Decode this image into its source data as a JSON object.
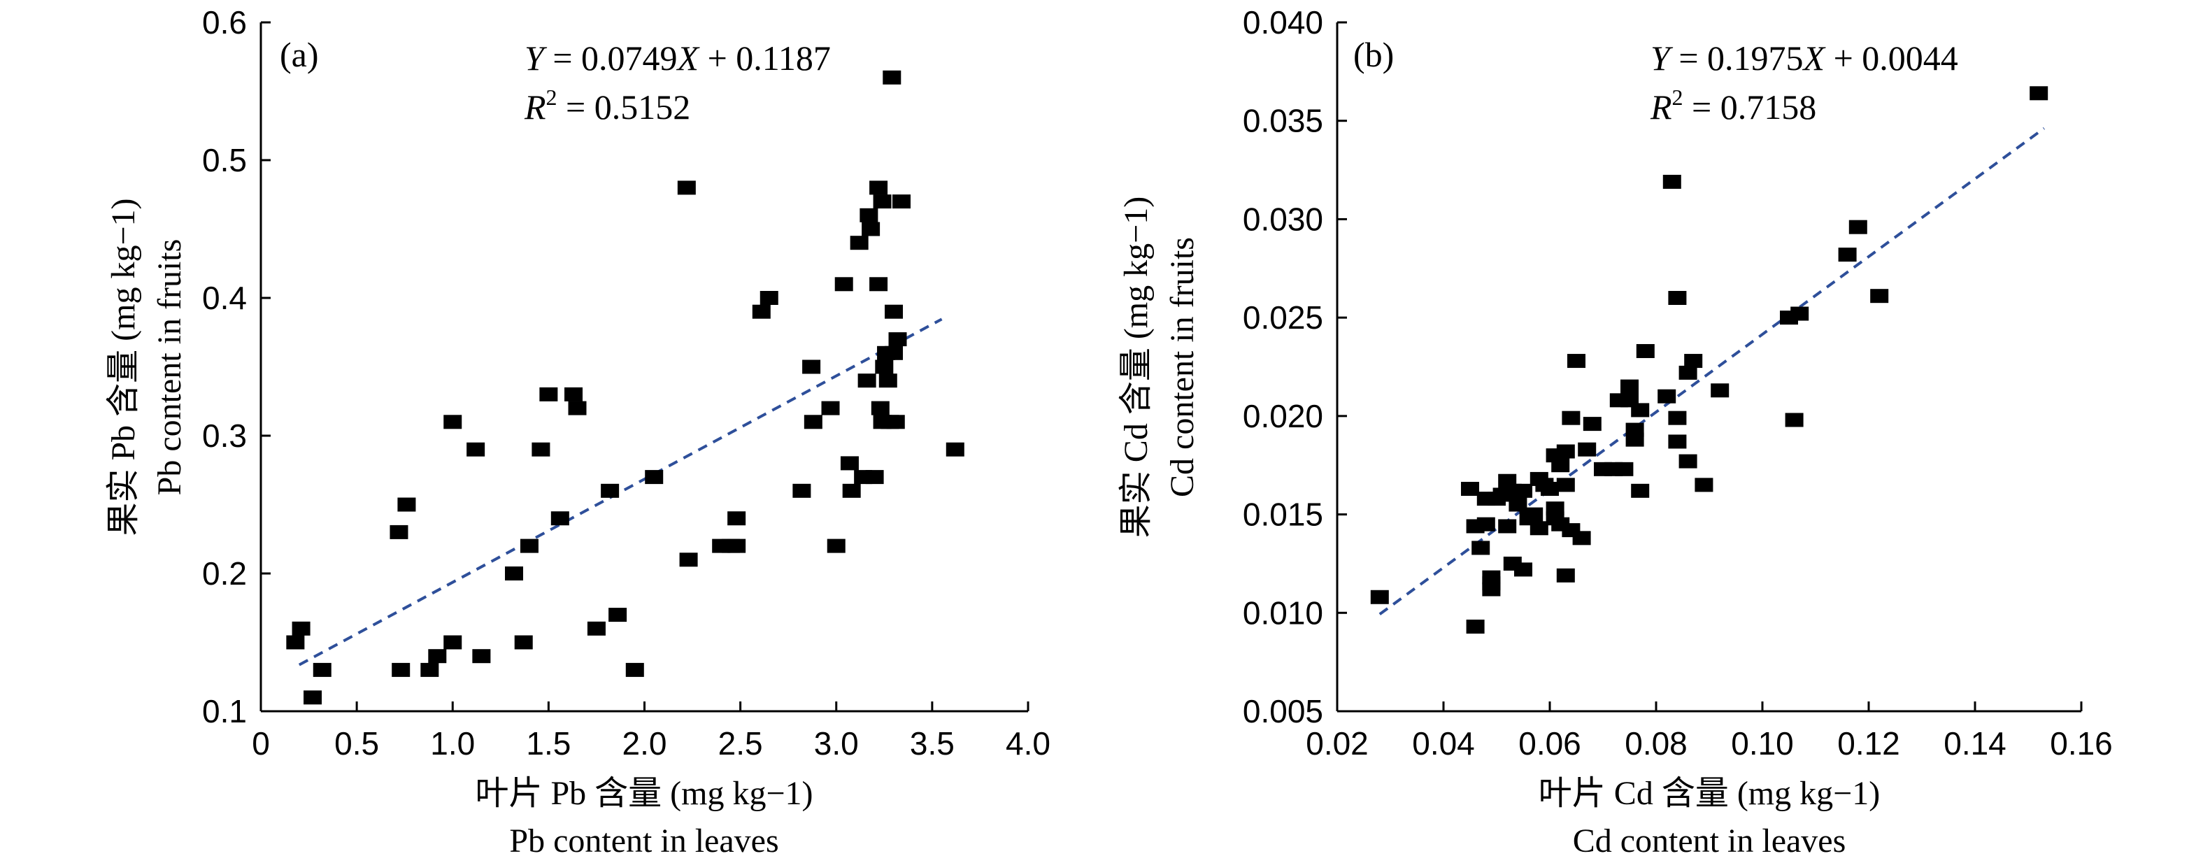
{
  "chart_data": [
    {
      "type": "scatter",
      "panel": "(a)",
      "equation": "Y = 0.0749X + 0.1187",
      "r2": "R2 = 0.5152",
      "xlabel_cn": "叶片 Pb 含量 (mg kg−1)",
      "xlabel_en": "Pb content in leaves",
      "ylabel_cn": "果实 Pb 含量 (mg kg−1)",
      "ylabel_en": "Pb content in fruits",
      "xlim": [
        0,
        4.0
      ],
      "ylim": [
        0.1,
        0.6
      ],
      "xticks": [
        "0",
        "0.5",
        "1.0",
        "1.5",
        "2.0",
        "2.5",
        "3.0",
        "3.5",
        "4.0"
      ],
      "yticks": [
        "0.1",
        "0.2",
        "0.3",
        "0.4",
        "0.5",
        "0.6"
      ],
      "fit": {
        "slope": 0.0749,
        "intercept": 0.1187,
        "x_range": [
          0.2,
          3.55
        ]
      },
      "points": [
        [
          0.18,
          0.15
        ],
        [
          0.21,
          0.16
        ],
        [
          0.27,
          0.11
        ],
        [
          0.32,
          0.13
        ],
        [
          0.72,
          0.23
        ],
        [
          0.73,
          0.13
        ],
        [
          0.76,
          0.25
        ],
        [
          0.88,
          0.13
        ],
        [
          0.92,
          0.14
        ],
        [
          1.0,
          0.31
        ],
        [
          1.0,
          0.15
        ],
        [
          1.12,
          0.29
        ],
        [
          1.15,
          0.14
        ],
        [
          1.32,
          0.2
        ],
        [
          1.37,
          0.15
        ],
        [
          1.4,
          0.22
        ],
        [
          1.46,
          0.29
        ],
        [
          1.5,
          0.33
        ],
        [
          1.56,
          0.24
        ],
        [
          1.63,
          0.33
        ],
        [
          1.65,
          0.32
        ],
        [
          1.75,
          0.16
        ],
        [
          1.82,
          0.26
        ],
        [
          1.86,
          0.17
        ],
        [
          1.95,
          0.13
        ],
        [
          2.05,
          0.27
        ],
        [
          2.22,
          0.48
        ],
        [
          2.23,
          0.21
        ],
        [
          2.4,
          0.22
        ],
        [
          2.45,
          0.22
        ],
        [
          2.48,
          0.24
        ],
        [
          2.48,
          0.22
        ],
        [
          2.61,
          0.39
        ],
        [
          2.65,
          0.4
        ],
        [
          2.82,
          0.26
        ],
        [
          2.87,
          0.35
        ],
        [
          2.88,
          0.31
        ],
        [
          2.97,
          0.32
        ],
        [
          3.0,
          0.22
        ],
        [
          3.04,
          0.41
        ],
        [
          3.07,
          0.28
        ],
        [
          3.08,
          0.26
        ],
        [
          3.12,
          0.44
        ],
        [
          3.14,
          0.27
        ],
        [
          3.16,
          0.34
        ],
        [
          3.17,
          0.46
        ],
        [
          3.18,
          0.45
        ],
        [
          3.2,
          0.27
        ],
        [
          3.22,
          0.48
        ],
        [
          3.22,
          0.41
        ],
        [
          3.23,
          0.32
        ],
        [
          3.24,
          0.47
        ],
        [
          3.24,
          0.31
        ],
        [
          3.25,
          0.35
        ],
        [
          3.26,
          0.36
        ],
        [
          3.27,
          0.34
        ],
        [
          3.28,
          0.31
        ],
        [
          3.29,
          0.56
        ],
        [
          3.3,
          0.39
        ],
        [
          3.3,
          0.36
        ],
        [
          3.31,
          0.31
        ],
        [
          3.32,
          0.37
        ],
        [
          3.34,
          0.47
        ],
        [
          3.62,
          0.29
        ]
      ]
    },
    {
      "type": "scatter",
      "panel": "(b)",
      "equation": "Y = 0.1975X + 0.0044",
      "r2": "R2 = 0.7158",
      "xlabel_cn": "叶片 Cd 含量 (mg kg−1)",
      "xlabel_en": "Cd content in leaves",
      "ylabel_cn": "果实 Cd 含量 (mg kg−1)",
      "ylabel_en": "Cd content in fruits",
      "xlim": [
        0.02,
        0.16
      ],
      "ylim": [
        0.005,
        0.04
      ],
      "xticks": [
        "0.02",
        "0.04",
        "0.06",
        "0.08",
        "0.10",
        "0.12",
        "0.14",
        "0.16"
      ],
      "yticks": [
        "0.005",
        "0.010",
        "0.015",
        "0.020",
        "0.025",
        "0.030",
        "0.035",
        "0.040"
      ],
      "fit": {
        "slope": 0.1975,
        "intercept": 0.0044,
        "x_range": [
          0.028,
          0.153
        ]
      },
      "points": [
        [
          0.028,
          0.0108
        ],
        [
          0.045,
          0.0163
        ],
        [
          0.046,
          0.0144
        ],
        [
          0.046,
          0.0093
        ],
        [
          0.047,
          0.0133
        ],
        [
          0.048,
          0.0158
        ],
        [
          0.048,
          0.0145
        ],
        [
          0.049,
          0.0118
        ],
        [
          0.049,
          0.0115
        ],
        [
          0.049,
          0.0112
        ],
        [
          0.05,
          0.0158
        ],
        [
          0.051,
          0.016
        ],
        [
          0.052,
          0.0167
        ],
        [
          0.052,
          0.0144
        ],
        [
          0.053,
          0.0125
        ],
        [
          0.053,
          0.0162
        ],
        [
          0.054,
          0.0155
        ],
        [
          0.055,
          0.0122
        ],
        [
          0.055,
          0.0162
        ],
        [
          0.056,
          0.0148
        ],
        [
          0.057,
          0.015
        ],
        [
          0.058,
          0.0168
        ],
        [
          0.058,
          0.0143
        ],
        [
          0.059,
          0.0165
        ],
        [
          0.06,
          0.0163
        ],
        [
          0.061,
          0.018
        ],
        [
          0.061,
          0.0153
        ],
        [
          0.061,
          0.0148
        ],
        [
          0.062,
          0.0175
        ],
        [
          0.062,
          0.0145
        ],
        [
          0.063,
          0.0182
        ],
        [
          0.063,
          0.0165
        ],
        [
          0.063,
          0.0119
        ],
        [
          0.064,
          0.0199
        ],
        [
          0.064,
          0.0142
        ],
        [
          0.065,
          0.0228
        ],
        [
          0.066,
          0.0138
        ],
        [
          0.067,
          0.0183
        ],
        [
          0.068,
          0.0196
        ],
        [
          0.07,
          0.0173
        ],
        [
          0.072,
          0.0173
        ],
        [
          0.073,
          0.0208
        ],
        [
          0.074,
          0.0173
        ],
        [
          0.075,
          0.0215
        ],
        [
          0.075,
          0.0208
        ],
        [
          0.076,
          0.0193
        ],
        [
          0.076,
          0.0188
        ],
        [
          0.077,
          0.0203
        ],
        [
          0.077,
          0.0162
        ],
        [
          0.078,
          0.0233
        ],
        [
          0.082,
          0.021
        ],
        [
          0.083,
          0.0319
        ],
        [
          0.084,
          0.026
        ],
        [
          0.084,
          0.0199
        ],
        [
          0.084,
          0.0187
        ],
        [
          0.086,
          0.0177
        ],
        [
          0.086,
          0.0222
        ],
        [
          0.087,
          0.0228
        ],
        [
          0.089,
          0.0165
        ],
        [
          0.092,
          0.0213
        ],
        [
          0.105,
          0.025
        ],
        [
          0.106,
          0.0198
        ],
        [
          0.107,
          0.0252
        ],
        [
          0.116,
          0.0282
        ],
        [
          0.118,
          0.0296
        ],
        [
          0.122,
          0.0261
        ],
        [
          0.152,
          0.0364
        ]
      ]
    }
  ]
}
